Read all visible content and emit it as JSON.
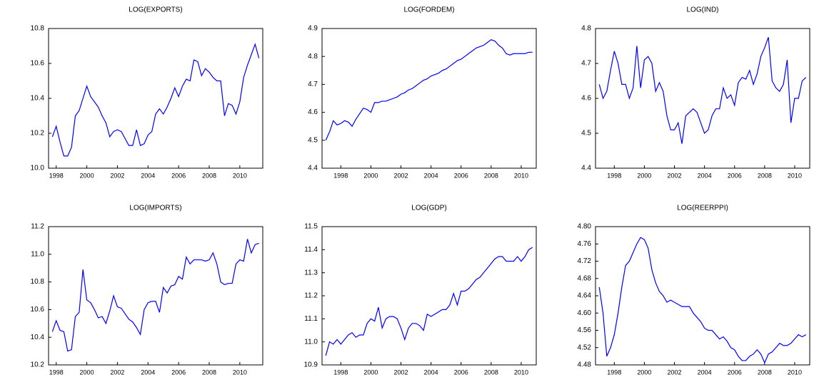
{
  "chart_data": [
    {
      "type": "line",
      "title": "LOG(EXPORTS)",
      "color": "#0000ff",
      "grid": false,
      "x": [
        1997.75,
        1998,
        1998.25,
        1998.5,
        1998.75,
        1999,
        1999.25,
        1999.5,
        1999.75,
        2000,
        2000.25,
        2000.5,
        2000.75,
        2001,
        2001.25,
        2001.5,
        2001.75,
        2002,
        2002.25,
        2002.5,
        2002.75,
        2003,
        2003.25,
        2003.5,
        2003.75,
        2004,
        2004.25,
        2004.5,
        2004.75,
        2005,
        2005.25,
        2005.5,
        2005.75,
        2006,
        2006.25,
        2006.5,
        2006.75,
        2007,
        2007.25,
        2007.5,
        2007.75,
        2008,
        2008.25,
        2008.5,
        2008.75,
        2009,
        2009.25,
        2009.5,
        2009.75,
        2010,
        2010.25,
        2010.5,
        2010.75,
        2011,
        2011.25
      ],
      "values": [
        10.18,
        10.24,
        10.15,
        10.07,
        10.07,
        10.12,
        10.3,
        10.33,
        10.4,
        10.47,
        10.41,
        10.38,
        10.35,
        10.3,
        10.26,
        10.18,
        10.21,
        10.22,
        10.21,
        10.17,
        10.13,
        10.13,
        10.22,
        10.13,
        10.14,
        10.19,
        10.21,
        10.31,
        10.34,
        10.31,
        10.35,
        10.4,
        10.46,
        10.41,
        10.47,
        10.51,
        10.5,
        10.62,
        10.61,
        10.53,
        10.57,
        10.55,
        10.52,
        10.5,
        10.5,
        10.3,
        10.37,
        10.36,
        10.31,
        10.38,
        10.52,
        10.59,
        10.65,
        10.71,
        10.63
      ],
      "xlim": [
        1997.5,
        2011.5
      ],
      "xticks": [
        1998,
        2000,
        2002,
        2004,
        2006,
        2008,
        2010
      ],
      "ylim": [
        10.0,
        10.8
      ],
      "yticks": [
        {
          "value": 10,
          "label": "10.0"
        },
        10.2,
        10.4,
        10.6,
        10.8
      ]
    },
    {
      "type": "line",
      "title": "LOG(FORDEM)",
      "color": "#0000ff",
      "grid": false,
      "x": [
        1997,
        1997.25,
        1997.5,
        1997.75,
        1998,
        1998.25,
        1998.5,
        1998.75,
        1999,
        1999.25,
        1999.5,
        1999.75,
        2000,
        2000.25,
        2000.5,
        2000.75,
        2001,
        2001.25,
        2001.5,
        2001.75,
        2002,
        2002.25,
        2002.5,
        2002.75,
        2003,
        2003.25,
        2003.5,
        2003.75,
        2004,
        2004.25,
        2004.5,
        2004.75,
        2005,
        2005.25,
        2005.5,
        2005.75,
        2006,
        2006.25,
        2006.5,
        2006.75,
        2007,
        2007.25,
        2007.5,
        2007.75,
        2008,
        2008.25,
        2008.5,
        2008.75,
        2009,
        2009.25,
        2009.5,
        2009.75,
        2010,
        2010.25,
        2010.5,
        2010.75
      ],
      "values": [
        4.5,
        4.53,
        4.57,
        4.555,
        4.56,
        4.57,
        4.565,
        4.55,
        4.575,
        4.595,
        4.615,
        4.61,
        4.6,
        4.635,
        4.635,
        4.64,
        4.64,
        4.645,
        4.65,
        4.655,
        4.665,
        4.67,
        4.68,
        4.685,
        4.695,
        4.705,
        4.715,
        4.72,
        4.73,
        4.735,
        4.74,
        4.75,
        4.755,
        4.765,
        4.775,
        4.785,
        4.79,
        4.8,
        4.81,
        4.82,
        4.83,
        4.835,
        4.84,
        4.85,
        4.86,
        4.855,
        4.84,
        4.83,
        4.81,
        4.805,
        4.81,
        4.81,
        4.81,
        4.81,
        4.815,
        4.815
      ],
      "xlim": [
        1996.75,
        2011
      ],
      "xticks": [
        1998,
        2000,
        2002,
        2004,
        2006,
        2008,
        2010
      ],
      "ylim": [
        4.4,
        4.9
      ],
      "yticks": [
        4.4,
        4.5,
        4.6,
        4.7,
        4.8,
        4.9
      ]
    },
    {
      "type": "line",
      "title": "LOG(IND)",
      "color": "#0000ff",
      "grid": false,
      "x": [
        1997,
        1997.25,
        1997.5,
        1997.75,
        1998,
        1998.25,
        1998.5,
        1998.75,
        1999,
        1999.25,
        1999.5,
        1999.75,
        2000,
        2000.25,
        2000.5,
        2000.75,
        2001,
        2001.25,
        2001.5,
        2001.75,
        2002,
        2002.25,
        2002.5,
        2002.75,
        2003,
        2003.25,
        2003.5,
        2003.75,
        2004,
        2004.25,
        2004.5,
        2004.75,
        2005,
        2005.25,
        2005.5,
        2005.75,
        2006,
        2006.25,
        2006.5,
        2006.75,
        2007,
        2007.25,
        2007.5,
        2007.75,
        2008,
        2008.25,
        2008.5,
        2008.75,
        2009,
        2009.25,
        2009.5,
        2009.75,
        2010,
        2010.25,
        2010.5,
        2010.75
      ],
      "values": [
        4.64,
        4.6,
        4.62,
        4.68,
        4.735,
        4.7,
        4.64,
        4.64,
        4.6,
        4.63,
        4.75,
        4.63,
        4.71,
        4.72,
        4.7,
        4.62,
        4.645,
        4.62,
        4.55,
        4.51,
        4.51,
        4.53,
        4.47,
        4.55,
        4.56,
        4.57,
        4.56,
        4.53,
        4.5,
        4.51,
        4.55,
        4.57,
        4.57,
        4.63,
        4.6,
        4.61,
        4.58,
        4.645,
        4.66,
        4.655,
        4.68,
        4.64,
        4.67,
        4.72,
        4.745,
        4.775,
        4.65,
        4.63,
        4.62,
        4.64,
        4.71,
        4.53,
        4.6,
        4.6,
        4.65,
        4.66
      ],
      "xlim": [
        1996.75,
        2011
      ],
      "xticks": [
        1998,
        2000,
        2002,
        2004,
        2006,
        2008,
        2010
      ],
      "ylim": [
        4.4,
        4.8
      ],
      "yticks": [
        4.4,
        4.5,
        4.6,
        4.7,
        4.8
      ]
    },
    {
      "type": "line",
      "title": "LOG(IMPORTS)",
      "color": "#0000ff",
      "grid": false,
      "x": [
        1997.75,
        1998,
        1998.25,
        1998.5,
        1998.75,
        1999,
        1999.25,
        1999.5,
        1999.75,
        2000,
        2000.25,
        2000.5,
        2000.75,
        2001,
        2001.25,
        2001.5,
        2001.75,
        2002,
        2002.25,
        2002.5,
        2002.75,
        2003,
        2003.25,
        2003.5,
        2003.75,
        2004,
        2004.25,
        2004.5,
        2004.75,
        2005,
        2005.25,
        2005.5,
        2005.75,
        2006,
        2006.25,
        2006.5,
        2006.75,
        2007,
        2007.25,
        2007.5,
        2007.75,
        2008,
        2008.25,
        2008.5,
        2008.75,
        2009,
        2009.25,
        2009.5,
        2009.75,
        2010,
        2010.25,
        2010.5,
        2010.75,
        2011,
        2011.25
      ],
      "values": [
        10.44,
        10.52,
        10.45,
        10.44,
        10.3,
        10.31,
        10.55,
        10.58,
        10.89,
        10.67,
        10.65,
        10.6,
        10.54,
        10.55,
        10.5,
        10.59,
        10.7,
        10.62,
        10.61,
        10.57,
        10.53,
        10.51,
        10.47,
        10.42,
        10.6,
        10.65,
        10.66,
        10.66,
        10.58,
        10.76,
        10.72,
        10.77,
        10.78,
        10.84,
        10.82,
        10.98,
        10.93,
        10.96,
        10.96,
        10.96,
        10.95,
        10.96,
        11.01,
        10.93,
        10.8,
        10.78,
        10.79,
        10.79,
        10.93,
        10.96,
        10.95,
        11.11,
        11.01,
        11.07,
        11.08
      ],
      "xlim": [
        1997.5,
        2011.5
      ],
      "xticks": [
        1998,
        2000,
        2002,
        2004,
        2006,
        2008,
        2010
      ],
      "ylim": [
        10.2,
        11.2
      ],
      "yticks": [
        10.2,
        10.4,
        10.6,
        10.8,
        {
          "value": 11,
          "label": "11.0"
        },
        11.2
      ]
    },
    {
      "type": "line",
      "title": "LOG(GDP)",
      "color": "#0000ff",
      "grid": false,
      "x": [
        1997,
        1997.25,
        1997.5,
        1997.75,
        1998,
        1998.25,
        1998.5,
        1998.75,
        1999,
        1999.25,
        1999.5,
        1999.75,
        2000,
        2000.25,
        2000.5,
        2000.75,
        2001,
        2001.25,
        2001.5,
        2001.75,
        2002,
        2002.25,
        2002.5,
        2002.75,
        2003,
        2003.25,
        2003.5,
        2003.75,
        2004,
        2004.25,
        2004.5,
        2004.75,
        2005,
        2005.25,
        2005.5,
        2005.75,
        2006,
        2006.25,
        2006.5,
        2006.75,
        2007,
        2007.25,
        2007.5,
        2007.75,
        2008,
        2008.25,
        2008.5,
        2008.75,
        2009,
        2009.25,
        2009.5,
        2009.75,
        2010,
        2010.25,
        2010.5,
        2010.75
      ],
      "values": [
        10.94,
        11.0,
        10.99,
        11.01,
        10.99,
        11.01,
        11.03,
        11.04,
        11.02,
        11.03,
        11.03,
        11.08,
        11.1,
        11.09,
        11.15,
        11.06,
        11.1,
        11.11,
        11.11,
        11.1,
        11.06,
        11.01,
        11.06,
        11.08,
        11.08,
        11.07,
        11.05,
        11.12,
        11.11,
        11.12,
        11.13,
        11.14,
        11.14,
        11.16,
        11.21,
        11.16,
        11.22,
        11.22,
        11.23,
        11.25,
        11.27,
        11.28,
        11.3,
        11.32,
        11.34,
        11.36,
        11.37,
        11.37,
        11.35,
        11.35,
        11.35,
        11.37,
        11.35,
        11.37,
        11.4,
        11.41
      ],
      "xlim": [
        1996.75,
        2011
      ],
      "xticks": [
        1998,
        2000,
        2002,
        2004,
        2006,
        2008,
        2010
      ],
      "ylim": [
        10.9,
        11.5
      ],
      "yticks": [
        10.9,
        {
          "value": 11,
          "label": "11.0"
        },
        11.1,
        11.2,
        11.3,
        11.4,
        11.5
      ]
    },
    {
      "type": "line",
      "title": "LOG(REERPPI)",
      "color": "#0000ff",
      "grid": false,
      "x": [
        1997,
        1997.25,
        1997.5,
        1997.75,
        1998,
        1998.25,
        1998.5,
        1998.75,
        1999,
        1999.25,
        1999.5,
        1999.75,
        2000,
        2000.25,
        2000.5,
        2000.75,
        2001,
        2001.25,
        2001.5,
        2001.75,
        2002,
        2002.25,
        2002.5,
        2002.75,
        2003,
        2003.25,
        2003.5,
        2003.75,
        2004,
        2004.25,
        2004.5,
        2004.75,
        2005,
        2005.25,
        2005.5,
        2005.75,
        2006,
        2006.25,
        2006.5,
        2006.75,
        2007,
        2007.25,
        2007.5,
        2007.75,
        2008,
        2008.25,
        2008.5,
        2008.75,
        2009,
        2009.25,
        2009.5,
        2009.75,
        2010,
        2010.25,
        2010.5,
        2010.75
      ],
      "values": [
        4.66,
        4.6,
        4.5,
        4.52,
        4.55,
        4.6,
        4.66,
        4.71,
        4.72,
        4.74,
        4.76,
        4.775,
        4.77,
        4.75,
        4.7,
        4.67,
        4.65,
        4.64,
        4.625,
        4.63,
        4.625,
        4.62,
        4.615,
        4.615,
        4.615,
        4.6,
        4.59,
        4.58,
        4.565,
        4.56,
        4.56,
        4.55,
        4.54,
        4.545,
        4.535,
        4.52,
        4.515,
        4.5,
        4.49,
        4.49,
        4.5,
        4.505,
        4.515,
        4.505,
        4.485,
        4.505,
        4.51,
        4.52,
        4.53,
        4.525,
        4.525,
        4.53,
        4.54,
        4.55,
        4.545,
        4.55
      ],
      "xlim": [
        1996.75,
        2011
      ],
      "xticks": [
        1998,
        2000,
        2002,
        2004,
        2006,
        2008,
        2010
      ],
      "ylim": [
        4.48,
        4.8
      ],
      "yticks": [
        4.48,
        4.52,
        4.56,
        {
          "value": 4.6,
          "label": "4.60"
        },
        4.64,
        4.68,
        4.72,
        4.76,
        {
          "value": 4.8,
          "label": "4.80"
        }
      ]
    }
  ]
}
